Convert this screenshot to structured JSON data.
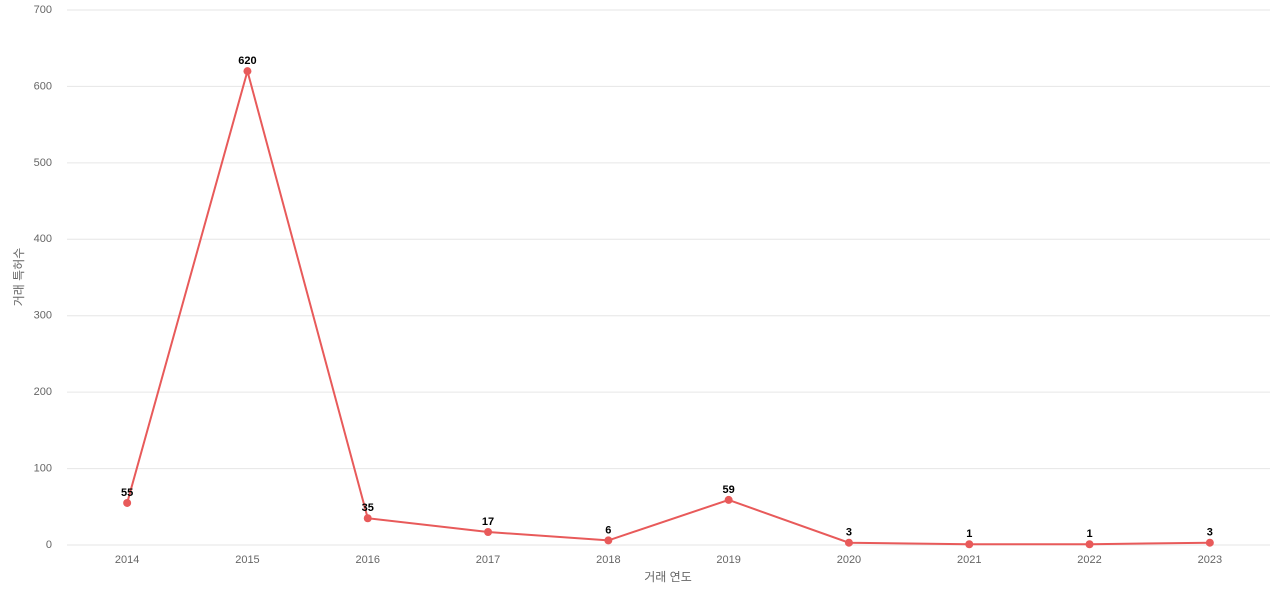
{
  "chart_data": {
    "type": "line",
    "x_label": "거래 연도",
    "y_label": "거래 특허수",
    "categories": [
      "2014",
      "2015",
      "2016",
      "2017",
      "2018",
      "2019",
      "2020",
      "2021",
      "2022",
      "2023"
    ],
    "values": [
      55,
      620,
      35,
      17,
      6,
      59,
      3,
      1,
      1,
      3
    ],
    "color": "#e85a5a",
    "ylim": [
      0,
      700
    ],
    "yticks": [
      0,
      100,
      200,
      300,
      400,
      500,
      600,
      700
    ],
    "grid": true
  }
}
